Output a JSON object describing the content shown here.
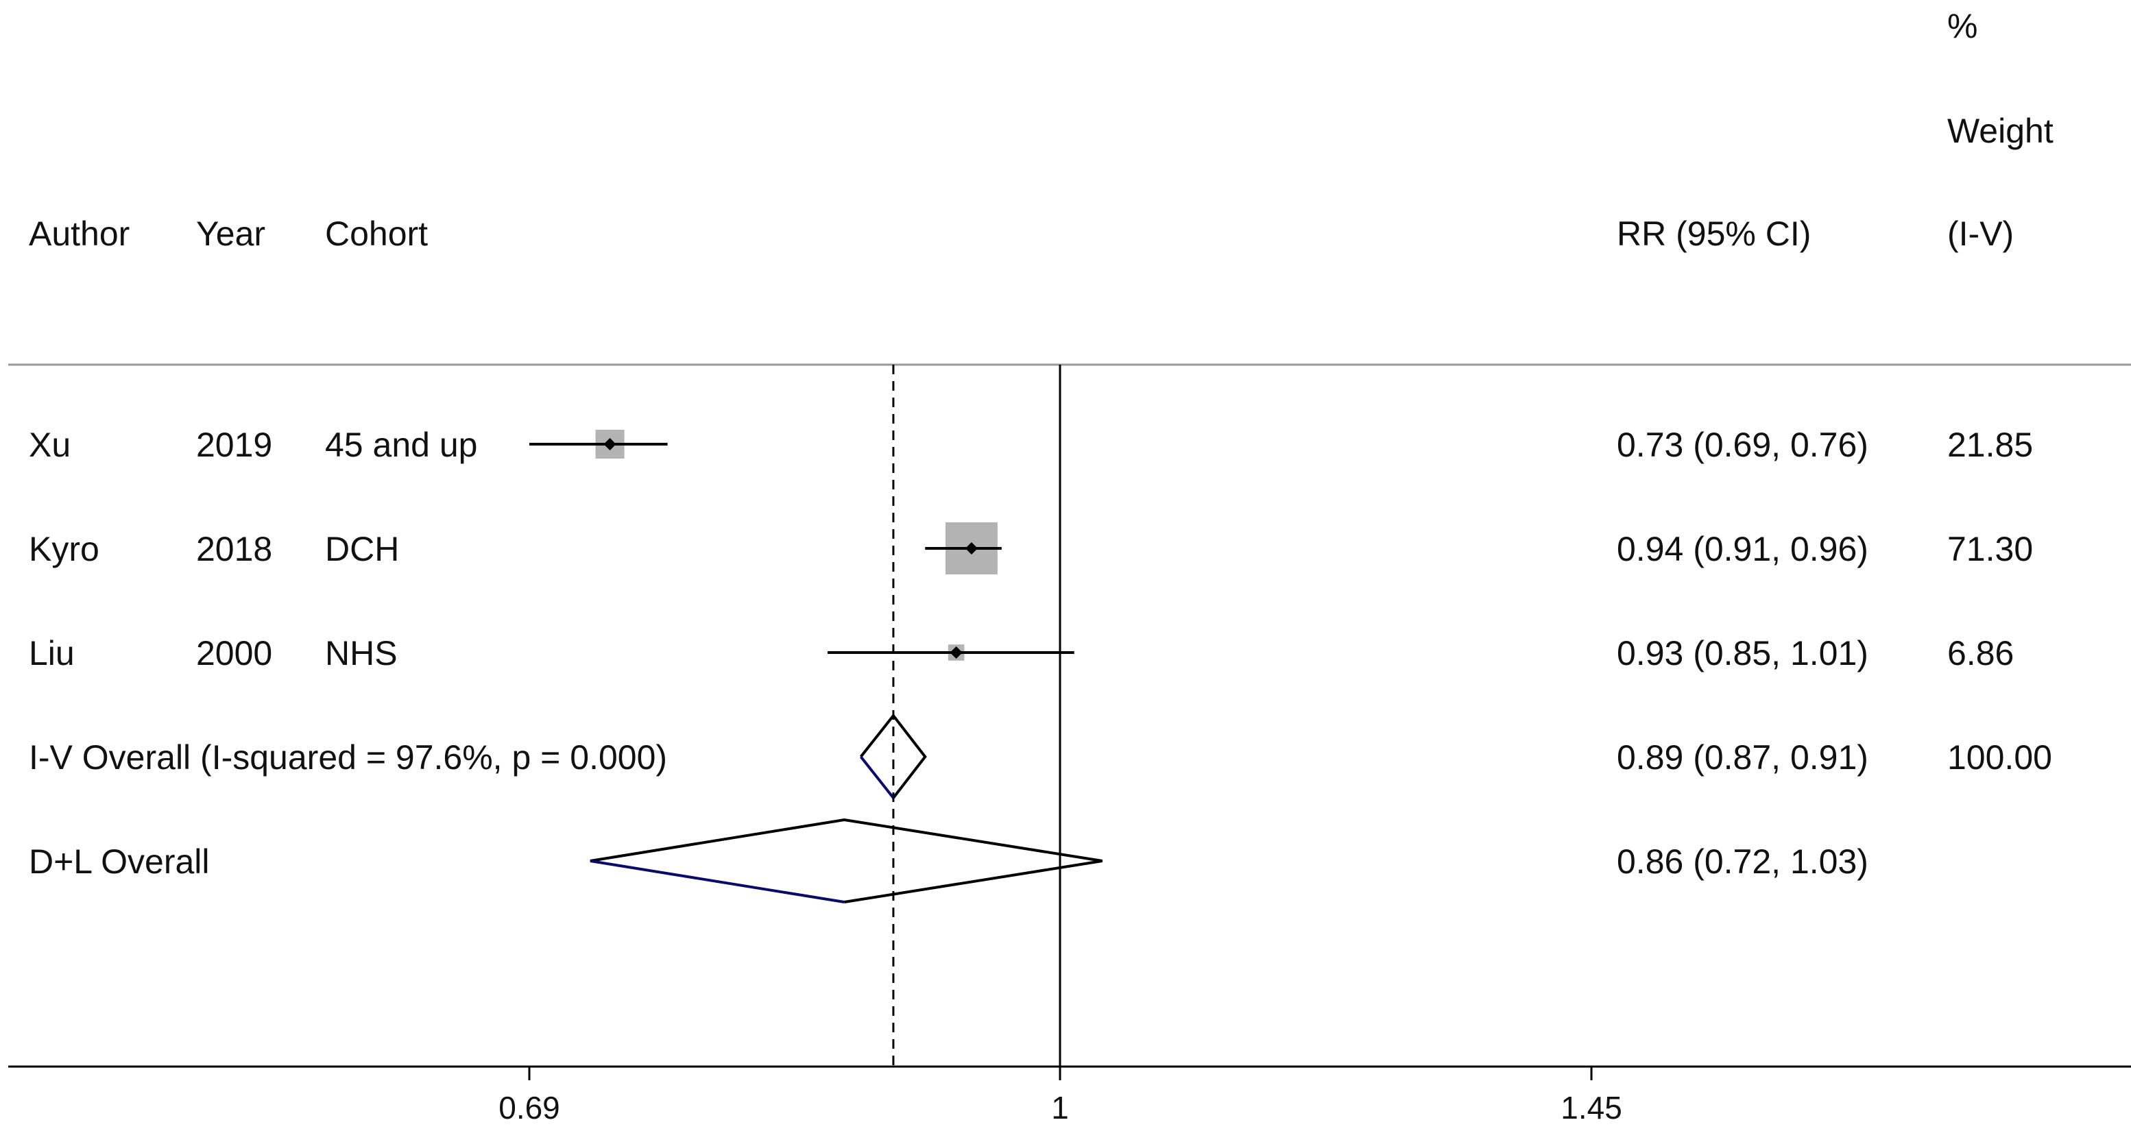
{
  "chart_data": {
    "type": "forest",
    "header": {
      "author": "Author",
      "year": "Year",
      "cohort": "Cohort",
      "rr": "RR (95% CI)",
      "weight_line1": "%",
      "weight_line2": "Weight",
      "weight_line3": "(I-V)"
    },
    "studies": [
      {
        "author": "Xu",
        "year": "2019",
        "cohort": "45 and up",
        "rr": 0.73,
        "lo": 0.69,
        "hi": 0.76,
        "rr_text": "0.73 (0.69, 0.76)",
        "weight": 21.85,
        "weight_text": "21.85"
      },
      {
        "author": "Kyro",
        "year": "2018",
        "cohort": "DCH",
        "rr": 0.94,
        "lo": 0.91,
        "hi": 0.96,
        "rr_text": "0.94 (0.91, 0.96)",
        "weight": 71.3,
        "weight_text": "71.30"
      },
      {
        "author": "Liu",
        "year": "2000",
        "cohort": "NHS",
        "rr": 0.93,
        "lo": 0.85,
        "hi": 1.01,
        "rr_text": "0.93 (0.85, 1.01)",
        "weight": 6.86,
        "weight_text": "6.86"
      }
    ],
    "overall": [
      {
        "label": "I-V Overall  (I-squared = 97.6%, p = 0.000)",
        "rr": 0.89,
        "lo": 0.87,
        "hi": 0.91,
        "rr_text": "0.89 (0.87, 0.91)",
        "weight_text": "100.00"
      },
      {
        "label": "D+L Overall",
        "rr": 0.86,
        "lo": 0.72,
        "hi": 1.03,
        "rr_text": "0.86 (0.72, 1.03)",
        "weight_text": ""
      }
    ],
    "xaxis": {
      "scale": "log",
      "ticks": [
        0.69,
        1,
        1.45
      ],
      "tick_labels": [
        "0.69",
        "1",
        "1.45"
      ],
      "null_line": 1,
      "reference_line": 0.89
    },
    "colors": {
      "box": "#b3b3b3",
      "line": "#000000",
      "diamond_lower": "#0a0a6b"
    }
  }
}
